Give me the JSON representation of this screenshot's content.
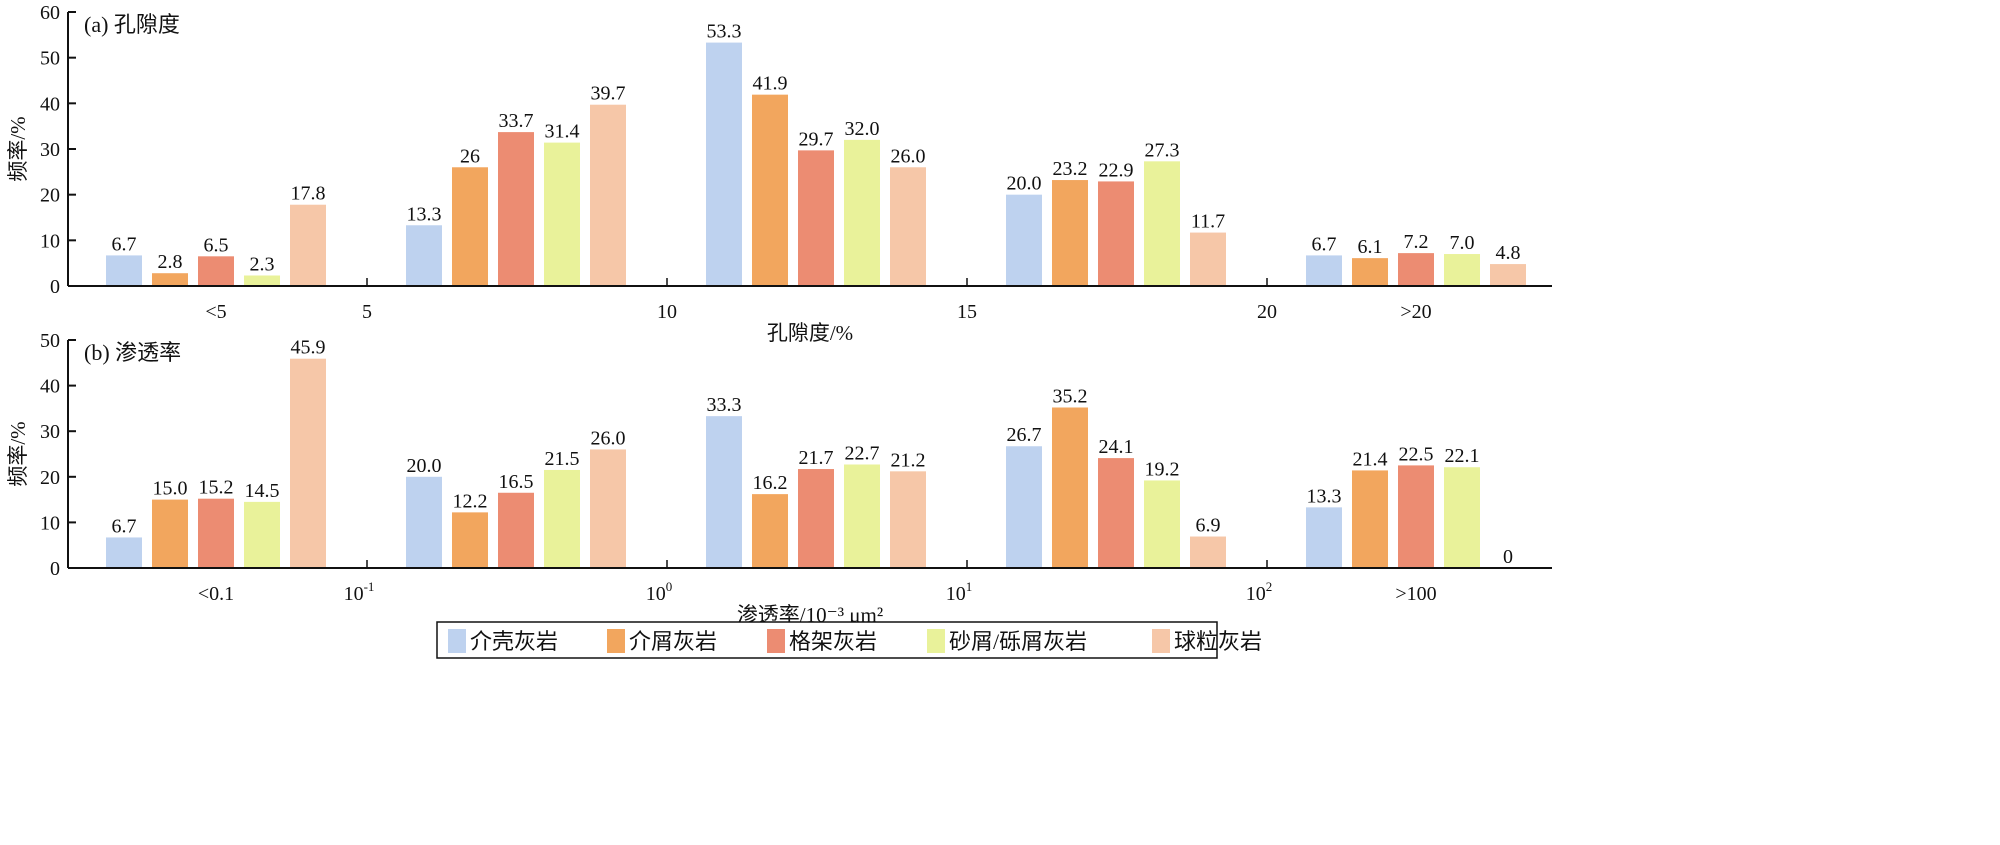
{
  "chart_data": [
    {
      "type": "bar",
      "title": "(a) 孔隙度",
      "xlabel": "孔隙度/%",
      "ylabel": "频率/%",
      "ylim": [
        0,
        60
      ],
      "yticks": [
        "0",
        "10",
        "20",
        "30",
        "40",
        "50",
        "60"
      ],
      "categories": [
        "<5",
        "5~10",
        "10~15",
        "15~20",
        ">20"
      ],
      "category_labels": [
        "<5",
        "",
        "",
        "",
        ">20"
      ],
      "boundary_ticks": [
        "5",
        "10",
        "15",
        "20"
      ],
      "series": [
        {
          "name": "介壳灰岩",
          "values": [
            6.7,
            13.3,
            53.3,
            20.0,
            6.7
          ],
          "labels": [
            "6.7",
            "13.3",
            "53.3",
            "20.0",
            "6.7"
          ]
        },
        {
          "name": "介屑灰岩",
          "values": [
            2.8,
            26,
            41.9,
            23.2,
            6.1
          ],
          "labels": [
            "2.8",
            "26",
            "41.9",
            "23.2",
            "6.1"
          ]
        },
        {
          "name": "格架灰岩",
          "values": [
            6.5,
            33.7,
            29.7,
            22.9,
            7.2
          ],
          "labels": [
            "6.5",
            "33.7",
            "29.7",
            "22.9",
            "7.2"
          ]
        },
        {
          "name": "砂屑/砾屑灰岩",
          "values": [
            2.3,
            31.4,
            32.0,
            27.3,
            7.0
          ],
          "labels": [
            "2.3",
            "31.4",
            "32.0",
            "27.3",
            "7.0"
          ]
        },
        {
          "name": "球粒灰岩",
          "values": [
            17.8,
            39.7,
            26.0,
            11.7,
            4.8
          ],
          "labels": [
            "17.8",
            "39.7",
            "26.0",
            "11.7",
            "4.8"
          ]
        }
      ]
    },
    {
      "type": "bar",
      "title": "(b) 渗透率",
      "xlabel": "渗透率/10⁻³ μm²",
      "ylabel": "频率/%",
      "ylim": [
        0,
        50
      ],
      "yticks": [
        "0",
        "10",
        "20",
        "30",
        "40",
        "50"
      ],
      "categories": [
        "<0.1",
        "0.1~1",
        "1~10",
        "10~100",
        ">100"
      ],
      "category_labels": [
        "<0.1",
        "",
        "",
        "",
        ">100"
      ],
      "boundary_ticks": [
        {
          "base": "10",
          "exp": "-1"
        },
        {
          "base": "10",
          "exp": "0"
        },
        {
          "base": "10",
          "exp": "1"
        },
        {
          "base": "10",
          "exp": "2"
        }
      ],
      "series": [
        {
          "name": "介壳灰岩",
          "values": [
            6.7,
            20.0,
            33.3,
            26.7,
            13.3
          ],
          "labels": [
            "6.7",
            "20.0",
            "33.3",
            "26.7",
            "13.3"
          ]
        },
        {
          "name": "介屑灰岩",
          "values": [
            15.0,
            12.2,
            16.2,
            35.2,
            21.4
          ],
          "labels": [
            "15.0",
            "12.2",
            "16.2",
            "35.2",
            "21.4"
          ]
        },
        {
          "name": "格架灰岩",
          "values": [
            15.2,
            16.5,
            21.7,
            24.1,
            22.5
          ],
          "labels": [
            "15.2",
            "16.5",
            "21.7",
            "24.1",
            "22.5"
          ]
        },
        {
          "name": "砂屑/砾屑灰岩",
          "values": [
            14.5,
            21.5,
            22.7,
            19.2,
            22.1
          ],
          "labels": [
            "14.5",
            "21.5",
            "22.7",
            "19.2",
            "22.1"
          ]
        },
        {
          "name": "球粒灰岩",
          "values": [
            45.9,
            26.0,
            21.2,
            6.9,
            0
          ],
          "labels": [
            "45.9",
            "26.0",
            "21.2",
            "6.9",
            "0"
          ]
        }
      ]
    }
  ],
  "legend": {
    "placement": "bottom-center",
    "items": [
      "介壳灰岩",
      "介屑灰岩",
      "格架灰岩",
      "砂屑/砾屑灰岩",
      "球粒灰岩"
    ]
  },
  "colors": [
    "#bed2ef",
    "#f2a65e",
    "#ec8c72",
    "#e9f29a",
    "#f6c7a8"
  ]
}
